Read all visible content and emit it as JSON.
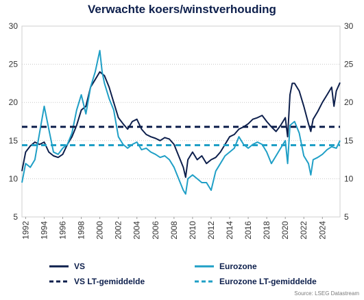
{
  "chart_data": {
    "type": "line",
    "title": "Verwachte koers/winstverhouding",
    "source": "Source: LSEG Datastream",
    "xlabel": "",
    "ylabel": "",
    "ylim": [
      5,
      30
    ],
    "xlim": [
      1991.6,
      2025.9
    ],
    "y_ticks": [
      5,
      10,
      15,
      20,
      25,
      30
    ],
    "x_ticks": [
      "1992",
      "1994",
      "1996",
      "1998",
      "2000",
      "2002",
      "2004",
      "2006",
      "2008",
      "2010",
      "2012",
      "2014",
      "2016",
      "2018",
      "2020",
      "2022",
      "2024"
    ],
    "grid": "horizontal dotted",
    "legend_placement": "bottom",
    "colors": {
      "vs": "#0d1f4c",
      "eurozone": "#1f9fc6"
    },
    "series": [
      {
        "name": "VS",
        "style": "solid",
        "color": "#0d1f4c",
        "x": [
          1991.6,
          1992.0,
          1992.5,
          1993.0,
          1993.5,
          1994.0,
          1994.5,
          1995.0,
          1995.5,
          1996.0,
          1996.5,
          1997.0,
          1997.5,
          1998.0,
          1998.5,
          1999.0,
          1999.5,
          2000.0,
          2000.5,
          2001.0,
          2001.5,
          2002.0,
          2002.5,
          2003.0,
          2003.5,
          2004.0,
          2004.5,
          2005.0,
          2005.5,
          2006.0,
          2006.5,
          2007.0,
          2007.5,
          2008.0,
          2008.5,
          2009.0,
          2009.25,
          2009.5,
          2010.0,
          2010.5,
          2011.0,
          2011.5,
          2012.0,
          2012.5,
          2013.0,
          2013.5,
          2014.0,
          2014.5,
          2015.0,
          2015.5,
          2016.0,
          2016.5,
          2017.0,
          2017.5,
          2018.0,
          2018.5,
          2019.0,
          2019.5,
          2020.0,
          2020.25,
          2020.5,
          2020.75,
          2021.0,
          2021.5,
          2022.0,
          2022.5,
          2022.75,
          2023.0,
          2023.5,
          2024.0,
          2024.5,
          2025.0,
          2025.25,
          2025.5,
          2025.9
        ],
        "values": [
          11.0,
          13.5,
          14.3,
          14.8,
          14.5,
          14.8,
          13.5,
          13.0,
          12.8,
          13.2,
          14.5,
          15.5,
          17.0,
          19.0,
          19.5,
          22.0,
          23.0,
          24.0,
          23.5,
          22.0,
          20.0,
          18.0,
          17.2,
          16.5,
          17.5,
          17.8,
          16.5,
          15.8,
          15.5,
          15.3,
          15.0,
          15.4,
          15.2,
          14.5,
          13.0,
          11.5,
          10.2,
          12.5,
          13.5,
          12.5,
          13.0,
          12.0,
          12.5,
          12.8,
          13.5,
          14.5,
          15.5,
          15.8,
          16.5,
          16.8,
          17.2,
          17.8,
          18.0,
          18.3,
          17.5,
          16.8,
          16.2,
          17.0,
          18.0,
          15.5,
          21.0,
          22.5,
          22.5,
          21.5,
          19.5,
          17.2,
          16.2,
          17.8,
          18.8,
          20.0,
          21.0,
          22.0,
          19.5,
          21.5,
          22.6
        ]
      },
      {
        "name": "Eurozone",
        "style": "solid",
        "color": "#1f9fc6",
        "x": [
          1991.6,
          1992.0,
          1992.5,
          1993.0,
          1993.5,
          1994.0,
          1994.5,
          1995.0,
          1995.5,
          1996.0,
          1996.5,
          1997.0,
          1997.5,
          1998.0,
          1998.5,
          1999.0,
          1999.5,
          2000.0,
          2000.25,
          2000.5,
          2001.0,
          2001.5,
          2002.0,
          2002.5,
          2003.0,
          2003.5,
          2004.0,
          2004.5,
          2005.0,
          2005.5,
          2006.0,
          2006.5,
          2007.0,
          2007.5,
          2008.0,
          2008.5,
          2009.0,
          2009.25,
          2009.5,
          2010.0,
          2010.5,
          2011.0,
          2011.5,
          2012.0,
          2012.5,
          2013.0,
          2013.5,
          2014.0,
          2014.5,
          2015.0,
          2015.5,
          2016.0,
          2016.5,
          2017.0,
          2017.5,
          2018.0,
          2018.5,
          2019.0,
          2019.5,
          2020.0,
          2020.25,
          2020.5,
          2021.0,
          2021.5,
          2022.0,
          2022.5,
          2022.75,
          2023.0,
          2023.5,
          2024.0,
          2024.5,
          2025.0,
          2025.5,
          2025.9
        ],
        "values": [
          9.5,
          12.0,
          11.5,
          12.5,
          16.0,
          19.5,
          16.5,
          13.5,
          13.2,
          14.0,
          14.5,
          16.0,
          19.0,
          21.0,
          18.5,
          22.0,
          24.0,
          26.8,
          24.0,
          22.5,
          20.5,
          19.0,
          15.5,
          14.5,
          14.0,
          14.5,
          14.8,
          13.8,
          14.0,
          13.5,
          13.2,
          12.8,
          13.0,
          12.5,
          11.5,
          10.0,
          8.5,
          8.0,
          10.0,
          10.5,
          10.0,
          9.5,
          9.5,
          8.5,
          11.0,
          12.0,
          13.0,
          13.5,
          14.0,
          15.5,
          14.5,
          14.0,
          14.5,
          14.8,
          14.5,
          13.5,
          12.0,
          13.0,
          14.0,
          15.0,
          12.0,
          17.0,
          17.5,
          16.0,
          13.0,
          12.0,
          10.5,
          12.5,
          12.8,
          13.2,
          13.8,
          14.2,
          14.0,
          15.0
        ]
      },
      {
        "name": "VS LT-gemiddelde",
        "style": "dashed",
        "color": "#0d1f4c",
        "value": 16.8
      },
      {
        "name": "Eurozone LT-gemiddelde",
        "style": "dashed",
        "color": "#1f9fc6",
        "value": 14.4
      }
    ]
  }
}
